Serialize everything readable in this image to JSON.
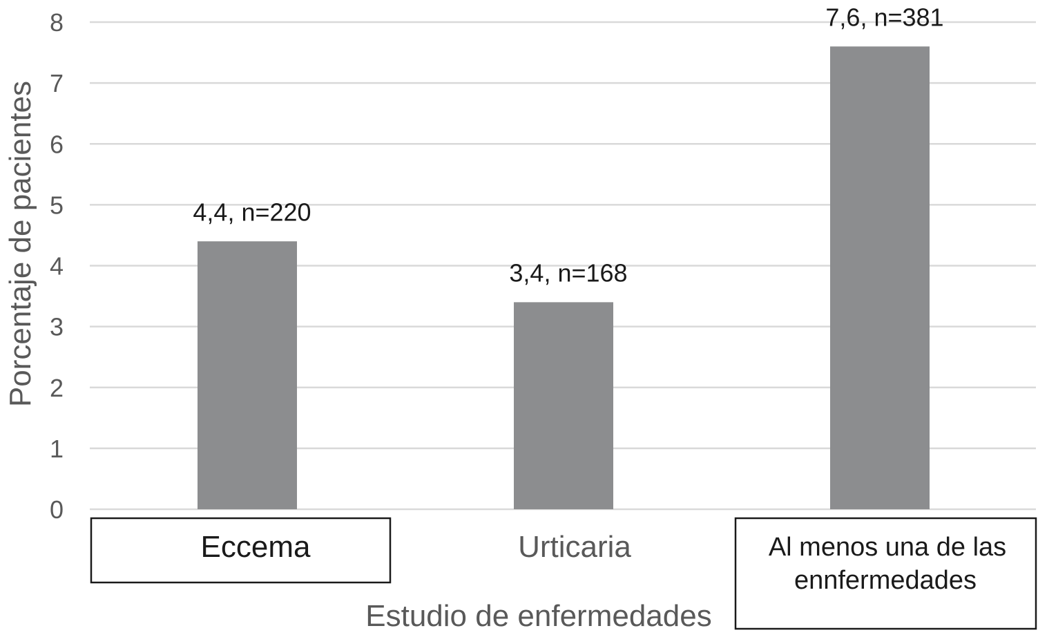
{
  "chart_data": {
    "type": "bar",
    "categories": [
      "Eccema",
      "Urticaria",
      "Al menos una de las ennfermedades"
    ],
    "category_lines": [
      [
        "Eccema"
      ],
      [
        "Urticaria"
      ],
      [
        "Al menos una de las",
        "ennfermedades"
      ]
    ],
    "boxed_categories": [
      true,
      false,
      true
    ],
    "values": [
      4.4,
      3.4,
      7.6
    ],
    "data_labels": [
      "4,4, n=220",
      "3,4, n=168",
      "7,6, n=381"
    ],
    "xlabel": "Estudio de enfermedades",
    "ylabel": "Porcentaje de pacientes",
    "ylim": [
      0,
      8
    ],
    "yticks": [
      "0",
      "1",
      "2",
      "3",
      "4",
      "5",
      "6",
      "7",
      "8"
    ],
    "grid": true,
    "bar_color": "#8c8d8f",
    "grid_color": "#d9d9d9"
  }
}
